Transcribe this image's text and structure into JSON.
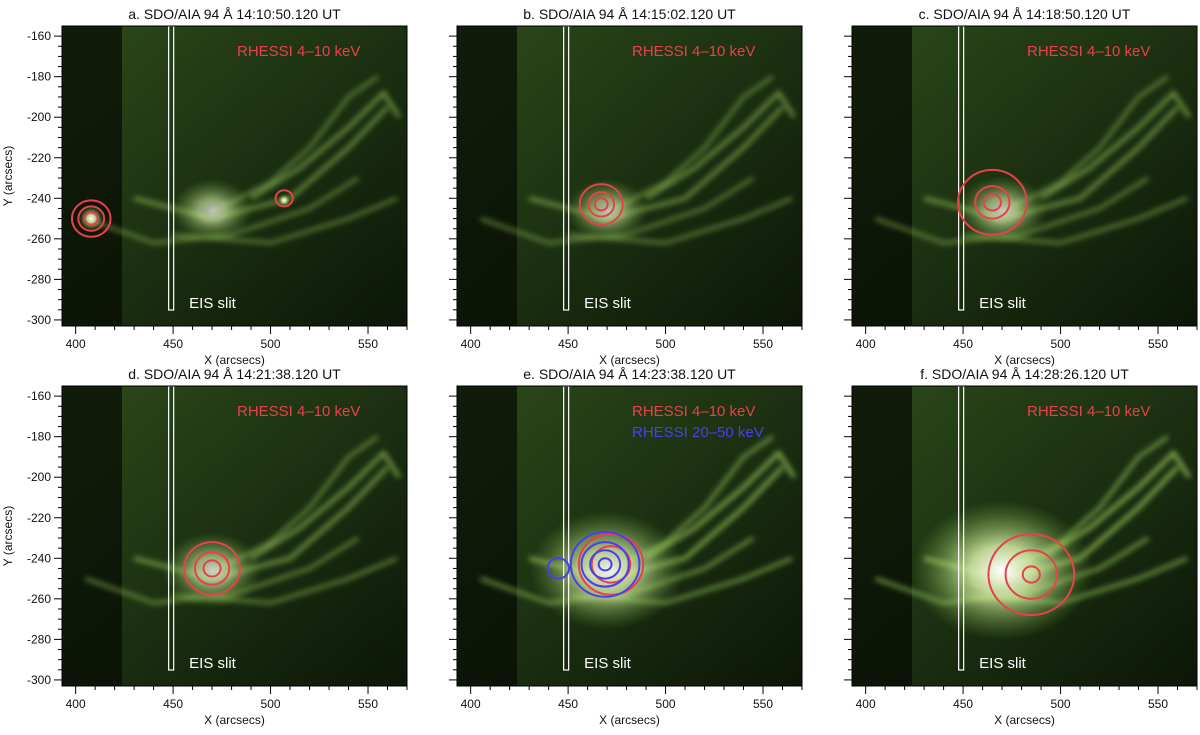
{
  "figure": {
    "axis_x_label": "X (arcsecs)",
    "axis_y_label": "Y (arcsecs)",
    "x_ticks": [
      "400",
      "450",
      "500",
      "550"
    ],
    "y_ticks": [
      "-160",
      "-180",
      "-200",
      "-220",
      "-240",
      "-260",
      "-280",
      "-300"
    ],
    "x_range": [
      393,
      570
    ],
    "y_range": [
      -303,
      -155
    ],
    "slit_x": 449,
    "slit_label": "EIS slit",
    "colors": {
      "rhessi_low": "#e8414c",
      "rhessi_high": "#4a3ff0",
      "image_tint": "#6ea83a",
      "background": "#0a1205"
    }
  },
  "panels": [
    {
      "title": "a. SDO/AIA 94 Å   14:10:50.120 UT",
      "legend": [
        "RHESSI 4–10 keV"
      ],
      "legend_colors": [
        "#e8414c"
      ],
      "brightness": 0.55,
      "contours": [
        {
          "band": "low",
          "cx": 408,
          "cy": -250,
          "r": [
            9,
            6,
            3
          ]
        },
        {
          "band": "low",
          "cx": 507,
          "cy": -240,
          "r": [
            4
          ]
        }
      ]
    },
    {
      "title": "b. SDO/AIA 94 Å   14:15:02.120 UT",
      "legend": [
        "RHESSI 4–10 keV"
      ],
      "legend_colors": [
        "#e8414c"
      ],
      "brightness": 0.55,
      "contours": [
        {
          "band": "low",
          "cx": 467,
          "cy": -243,
          "r": [
            10,
            6,
            3
          ]
        }
      ]
    },
    {
      "title": "c. SDO/AIA 94 Å   14:18:50.120 UT",
      "legend": [
        "RHESSI 4–10 keV"
      ],
      "legend_colors": [
        "#e8414c"
      ],
      "brightness": 0.6,
      "contours": [
        {
          "band": "low",
          "cx": 465,
          "cy": -242,
          "r": [
            16,
            8,
            4
          ]
        }
      ]
    },
    {
      "title": "d. SDO/AIA 94 Å   14:21:38.120 UT",
      "legend": [
        "RHESSI 4–10 keV"
      ],
      "legend_colors": [
        "#e8414c"
      ],
      "brightness": 0.65,
      "contours": [
        {
          "band": "low",
          "cx": 470,
          "cy": -245,
          "r": [
            13,
            8,
            4
          ]
        }
      ]
    },
    {
      "title": "e. SDO/AIA 94 Å   14:23:38.120 UT",
      "legend": [
        "RHESSI 4–10 keV",
        "RHESSI 20–50 keV"
      ],
      "legend_colors": [
        "#e8414c",
        "#4a3ff0"
      ],
      "brightness": 0.9,
      "contours": [
        {
          "band": "low",
          "cx": 472,
          "cy": -243,
          "r": [
            15,
            9
          ]
        },
        {
          "band": "high",
          "cx": 469,
          "cy": -243,
          "r": [
            16,
            11,
            7,
            3
          ]
        },
        {
          "band": "high",
          "cx": 445,
          "cy": -245,
          "r": [
            5
          ]
        }
      ]
    },
    {
      "title": "f. SDO/AIA 94 Å   14:28:26.120 UT",
      "legend": [
        "RHESSI 4–10 keV"
      ],
      "legend_colors": [
        "#e8414c"
      ],
      "brightness": 1.0,
      "contours": [
        {
          "band": "low",
          "cx": 485,
          "cy": -248,
          "r": [
            20,
            12,
            4
          ]
        }
      ]
    }
  ]
}
